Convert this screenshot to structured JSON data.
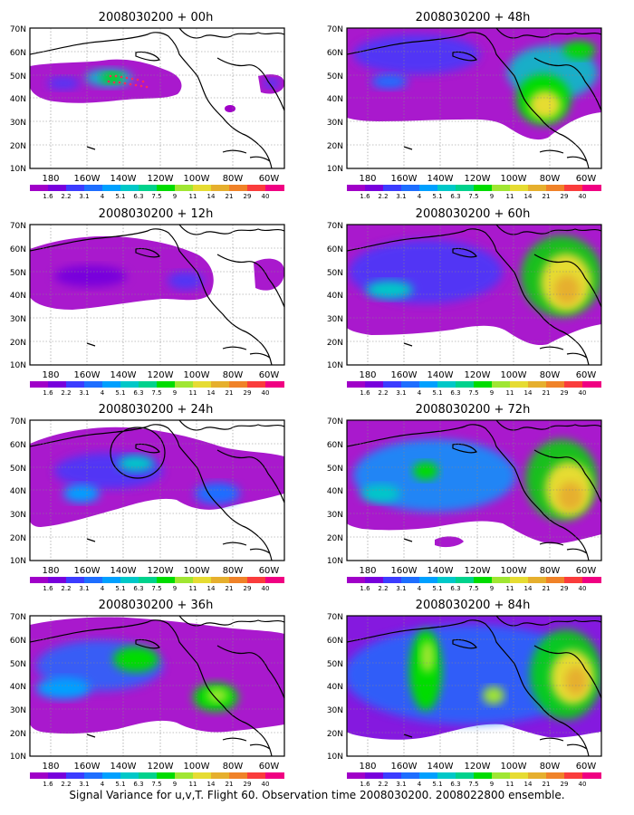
{
  "caption": "Signal Variance for u,v,T. Flight 60. Observation time 2008030200. 2008022800 ensemble.",
  "lat_labels": [
    "70N",
    "60N",
    "50N",
    "40N",
    "30N",
    "20N",
    "10N"
  ],
  "lon_labels": [
    "180",
    "160W",
    "140W",
    "120W",
    "100W",
    "80W",
    "60W"
  ],
  "colorbar": {
    "labels": [
      "1.6",
      "2.2",
      "3.1",
      "4",
      "5.1",
      "6.3",
      "7.5",
      "9",
      "11",
      "14",
      "21",
      "29",
      "40"
    ],
    "colors": [
      "#a000c8",
      "#7800dc",
      "#3c3cff",
      "#1e6eff",
      "#00a0ff",
      "#00c8c8",
      "#00d28c",
      "#00dc00",
      "#a0e632",
      "#e6dc32",
      "#e6af2d",
      "#f08228",
      "#fa3c3c",
      "#f00082"
    ]
  },
  "panels": [
    {
      "id": "p00",
      "title": "2008030200 + 00h",
      "level": 0
    },
    {
      "id": "p48",
      "title": "2008030200 + 48h",
      "level": 5
    },
    {
      "id": "p12",
      "title": "2008030200 + 12h",
      "level": 1
    },
    {
      "id": "p60",
      "title": "2008030200 + 60h",
      "level": 6
    },
    {
      "id": "p24",
      "title": "2008030200 + 24h",
      "level": 2
    },
    {
      "id": "p72",
      "title": "2008030200 + 72h",
      "level": 7
    },
    {
      "id": "p36",
      "title": "2008030200 + 36h",
      "level": 3
    },
    {
      "id": "p84",
      "title": "2008030200 + 84h",
      "level": 8
    }
  ]
}
